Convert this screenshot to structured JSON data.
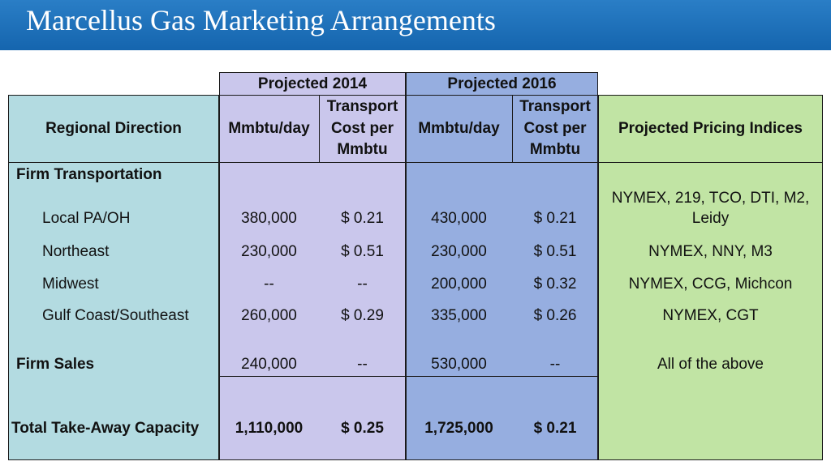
{
  "slide": {
    "title": "Marcellus Gas Marketing Arrangements"
  },
  "headers": {
    "projected_2014": "Projected  2014",
    "projected_2016": "Projected  2016",
    "regional_direction": "Regional Direction",
    "mmbtu_day": "Mmbtu/day",
    "transport_line1": "Transport",
    "transport_line2": "Cost per",
    "transport_line3": "Mmbtu",
    "pricing_indices": "Projected Pricing Indices"
  },
  "sections": {
    "firm_transportation": "Firm Transportation",
    "firm_sales": "Firm Sales",
    "total": "Total Take-Away Capacity"
  },
  "rows": [
    {
      "label": "Local PA/OH",
      "vol_2014": "380,000",
      "cost_2014": "$  0.21",
      "vol_2016": "430,000",
      "cost_2016": "$  0.21",
      "pricing_line1": "NYMEX, 219, TCO, DTI, M2,",
      "pricing_line2": "Leidy"
    },
    {
      "label": "Northeast",
      "vol_2014": "230,000",
      "cost_2014": "$  0.51",
      "vol_2016": "230,000",
      "cost_2016": "$  0.51",
      "pricing": "NYMEX, NNY, M3"
    },
    {
      "label": "Midwest",
      "vol_2014": "--",
      "cost_2014": "--",
      "vol_2016": "200,000",
      "cost_2016": "$  0.32",
      "pricing": "NYMEX, CCG, Michcon"
    },
    {
      "label": "Gulf Coast/Southeast",
      "vol_2014": "260,000",
      "cost_2014": "$  0.29",
      "vol_2016": "335,000",
      "cost_2016": "$  0.26",
      "pricing": "NYMEX, CGT"
    }
  ],
  "firm_sales": {
    "vol_2014": "240,000",
    "cost_2014": "--",
    "vol_2016": "530,000",
    "cost_2016": "--",
    "pricing": "All of the above"
  },
  "totals": {
    "vol_2014": "1,110,000",
    "cost_2014": "$  0.25",
    "vol_2016": "1,725,000",
    "cost_2016": "$  0.21"
  }
}
